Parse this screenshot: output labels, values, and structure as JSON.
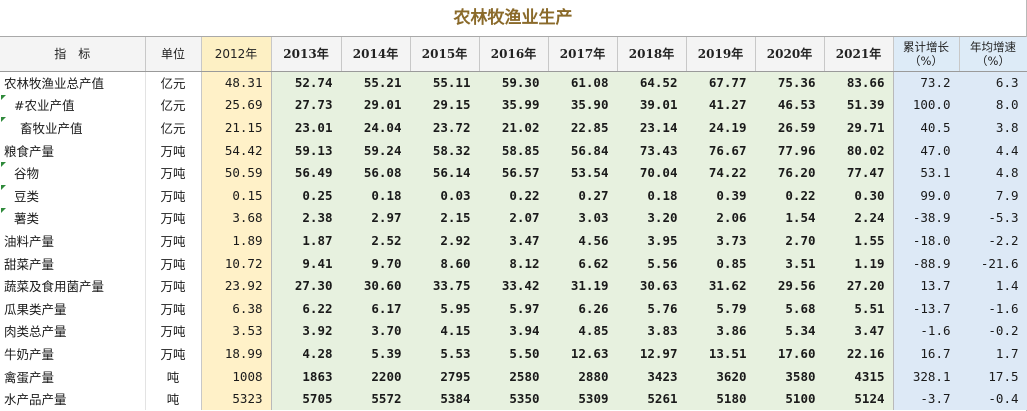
{
  "title": "农林牧渔业生产",
  "headers": {
    "indicator": "指　标",
    "unit": "单位",
    "years": [
      "2012年",
      "2013年",
      "2014年",
      "2015年",
      "2016年",
      "2017年",
      "2018年",
      "2019年",
      "2020年",
      "2021年"
    ],
    "cum_growth": [
      "累计增长",
      "（%）"
    ],
    "avg_growth": [
      "年均增速",
      "（%）"
    ]
  },
  "rows": [
    {
      "name": "农林牧渔业总产值",
      "unit": "亿元",
      "values": [
        "48.31",
        "52.74",
        "55.21",
        "55.11",
        "59.30",
        "61.08",
        "64.52",
        "67.77",
        "75.36",
        "83.66"
      ],
      "cum": "73.2",
      "avg": "6.3"
    },
    {
      "name": "#农业产值",
      "unit": "亿元",
      "values": [
        "25.69",
        "27.73",
        "29.01",
        "29.15",
        "35.99",
        "35.90",
        "39.01",
        "41.27",
        "46.53",
        "51.39"
      ],
      "cum": "100.0",
      "avg": "8.0"
    },
    {
      "name": "畜牧业产值",
      "unit": "亿元",
      "values": [
        "21.15",
        "23.01",
        "24.04",
        "23.72",
        "21.02",
        "22.85",
        "23.14",
        "24.19",
        "26.59",
        "29.71"
      ],
      "cum": "40.5",
      "avg": "3.8"
    },
    {
      "name": "粮食产量",
      "unit": "万吨",
      "values": [
        "54.42",
        "59.13",
        "59.24",
        "58.32",
        "58.85",
        "56.84",
        "73.43",
        "76.67",
        "77.96",
        "80.02"
      ],
      "cum": "47.0",
      "avg": "4.4"
    },
    {
      "name": "谷物",
      "unit": "万吨",
      "values": [
        "50.59",
        "56.49",
        "56.08",
        "56.14",
        "56.57",
        "53.54",
        "70.04",
        "74.22",
        "76.20",
        "77.47"
      ],
      "cum": "53.1",
      "avg": "4.8"
    },
    {
      "name": "豆类",
      "unit": "万吨",
      "values": [
        "0.15",
        "0.25",
        "0.18",
        "0.03",
        "0.22",
        "0.27",
        "0.18",
        "0.39",
        "0.22",
        "0.30"
      ],
      "cum": "99.0",
      "avg": "7.9"
    },
    {
      "name": "薯类",
      "unit": "万吨",
      "values": [
        "3.68",
        "2.38",
        "2.97",
        "2.15",
        "2.07",
        "3.03",
        "3.20",
        "2.06",
        "1.54",
        "2.24"
      ],
      "cum": "-38.9",
      "avg": "-5.3"
    },
    {
      "name": "油料产量",
      "unit": "万吨",
      "values": [
        "1.89",
        "1.87",
        "2.52",
        "2.92",
        "3.47",
        "4.56",
        "3.95",
        "3.73",
        "2.70",
        "1.55"
      ],
      "cum": "-18.0",
      "avg": "-2.2"
    },
    {
      "name": "甜菜产量",
      "unit": "万吨",
      "values": [
        "10.72",
        "9.41",
        "9.70",
        "8.60",
        "8.12",
        "6.62",
        "5.56",
        "0.85",
        "3.51",
        "1.19"
      ],
      "cum": "-88.9",
      "avg": "-21.6"
    },
    {
      "name": "蔬菜及食用菌产量",
      "unit": "万吨",
      "values": [
        "23.92",
        "27.30",
        "30.60",
        "33.75",
        "33.42",
        "31.19",
        "30.63",
        "31.62",
        "29.56",
        "27.20"
      ],
      "cum": "13.7",
      "avg": "1.4"
    },
    {
      "name": "瓜果类产量",
      "unit": "万吨",
      "values": [
        "6.38",
        "6.22",
        "6.17",
        "5.95",
        "5.97",
        "6.26",
        "5.76",
        "5.79",
        "5.68",
        "5.51"
      ],
      "cum": "-13.7",
      "avg": "-1.6"
    },
    {
      "name": "肉类总产量",
      "unit": "万吨",
      "values": [
        "3.53",
        "3.92",
        "3.70",
        "4.15",
        "3.94",
        "4.85",
        "3.83",
        "3.86",
        "5.34",
        "3.47"
      ],
      "cum": "-1.6",
      "avg": "-0.2"
    },
    {
      "name": "牛奶产量",
      "unit": "万吨",
      "values": [
        "18.99",
        "4.28",
        "5.39",
        "5.53",
        "5.50",
        "12.63",
        "12.97",
        "13.51",
        "17.60",
        "22.16"
      ],
      "cum": "16.7",
      "avg": "1.7"
    },
    {
      "name": "禽蛋产量",
      "unit": "吨",
      "values": [
        "1008",
        "1863",
        "2200",
        "2795",
        "2580",
        "2880",
        "3423",
        "3620",
        "3580",
        "4315"
      ],
      "cum": "328.1",
      "avg": "17.5"
    },
    {
      "name": "水产品产量",
      "unit": "吨",
      "values": [
        "5323",
        "5705",
        "5572",
        "5384",
        "5350",
        "5309",
        "5261",
        "5180",
        "5100",
        "5124"
      ],
      "cum": "-3.7",
      "avg": "-0.4"
    }
  ],
  "colors": {
    "title": "#8a6a2a",
    "base_year_fill": "#fff1c8",
    "years_fill": "#e7f1df",
    "stats_fill": "#dde9f6",
    "error_marker": "#2f8a3b"
  }
}
